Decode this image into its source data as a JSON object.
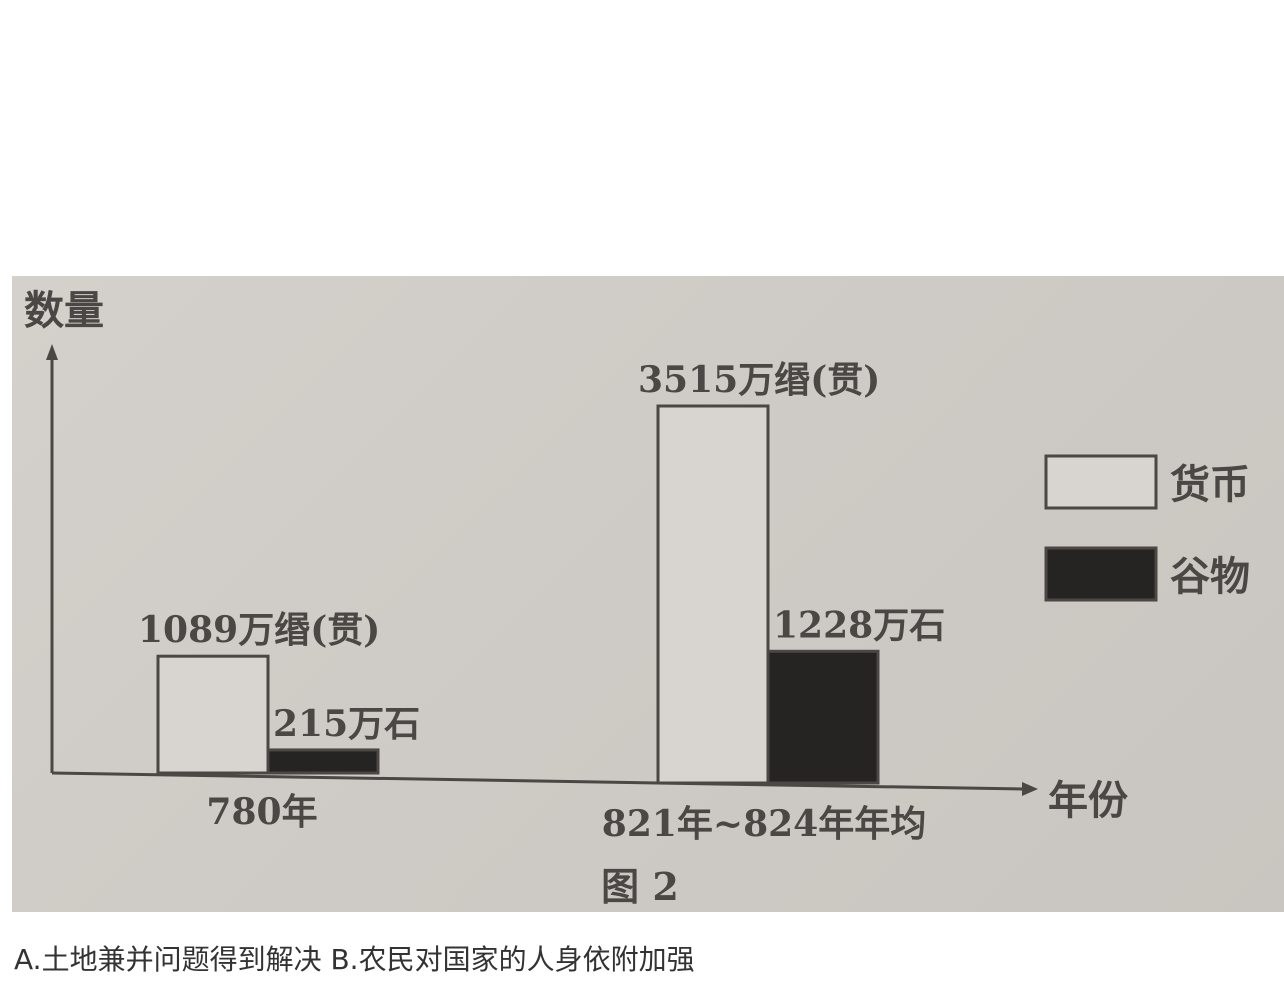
{
  "chart_data": {
    "type": "bar",
    "ylabel": "数量",
    "xlabel": "年份",
    "figure_label": "图 2",
    "categories": [
      "780年",
      "821年~824年年均"
    ],
    "series": [
      {
        "name": "货币",
        "values": [
          1089,
          3515
        ],
        "labels": [
          "1089万缗(贯)",
          "3515万缗(贯)"
        ],
        "color": "#d8d4cf"
      },
      {
        "name": "谷物",
        "values": [
          215,
          1228
        ],
        "labels": [
          "215万石",
          "1228万石"
        ],
        "color": "#262422"
      }
    ],
    "legend_position": "right",
    "grid": false
  },
  "caption": "A.土地兼并问题得到解决 B.农民对国家的人身依附加强"
}
